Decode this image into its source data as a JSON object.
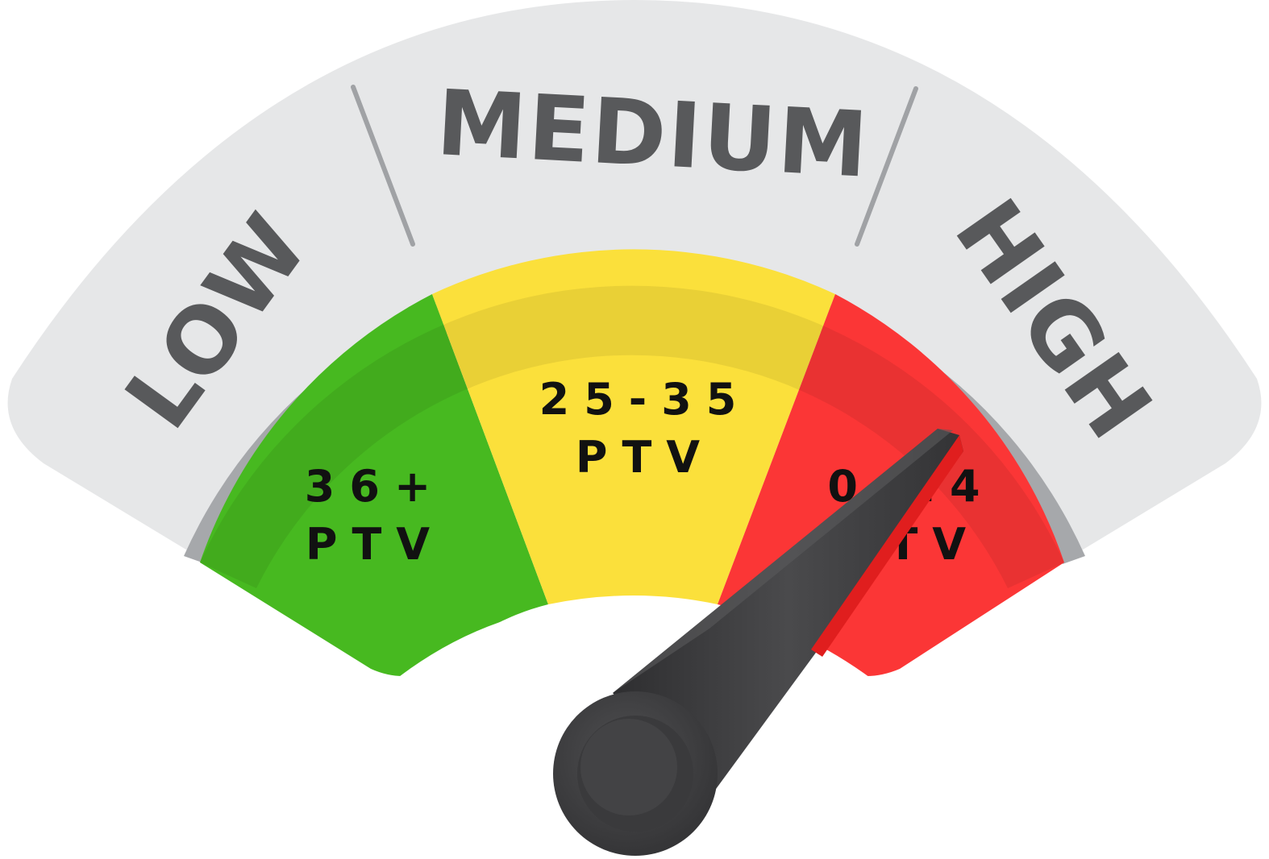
{
  "gauge": {
    "categories": [
      {
        "label": "LOW"
      },
      {
        "label": "MEDIUM"
      },
      {
        "label": "HIGH"
      }
    ],
    "zones": [
      {
        "range": "36+",
        "unit": "PTV",
        "color": "#47b920"
      },
      {
        "range": "25-35",
        "unit": "PTV",
        "color": "#fbe03b"
      },
      {
        "range": "0-24",
        "unit": "PTV",
        "color": "#fb3636"
      }
    ],
    "band_color": "#e6e7e8",
    "needle_color": "#454547"
  }
}
